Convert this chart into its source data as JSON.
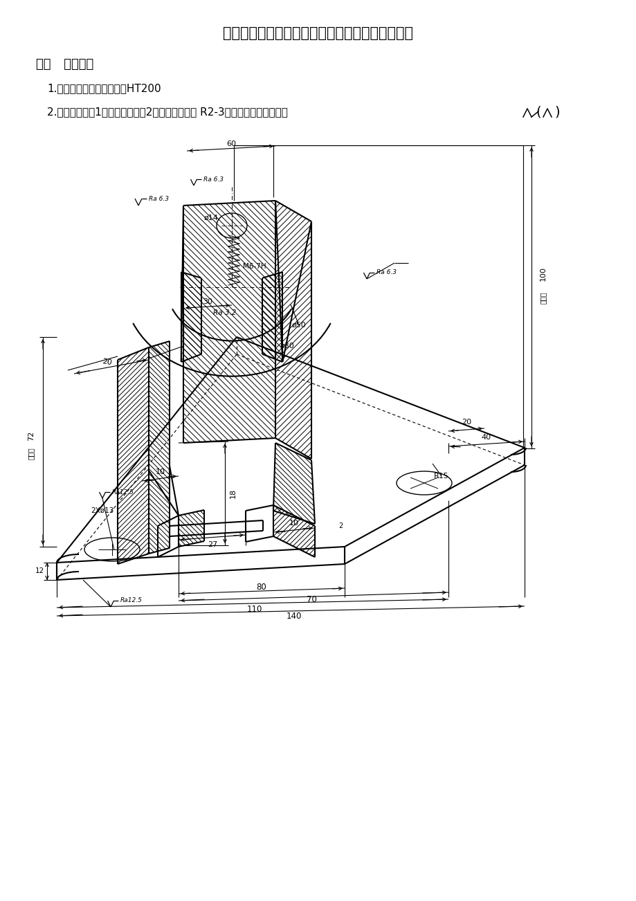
{
  "title": "郑州大学现代远程教育《工程制图》课程考核要求",
  "section1": "一．   作业内容",
  "item1": "1.零件名称：支架；材料：HT200",
  "item2": "2.技术要求：（1）时效处理；（2）未注铸造圆角 R2-3；未注表面粗糙度为：",
  "bg": "#ffffff",
  "lc": "#000000",
  "title_fs": 15,
  "sec_fs": 13,
  "body_fs": 11
}
